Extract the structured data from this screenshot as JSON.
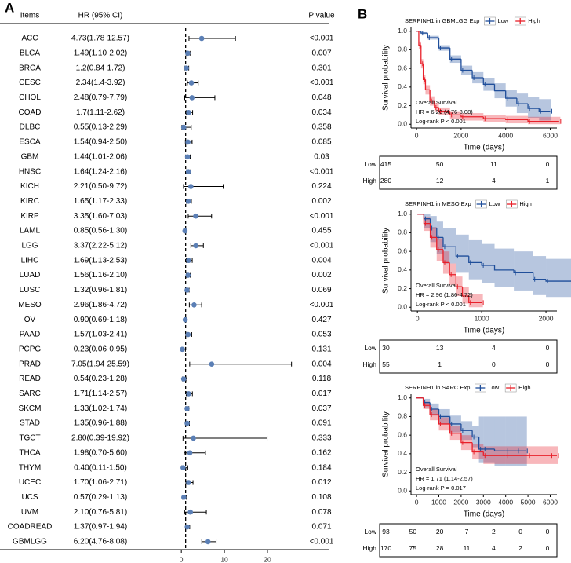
{
  "chart_data": [
    {
      "type": "forest",
      "panel": "A",
      "columns": [
        "Items",
        "HR (95% CI)",
        "P value"
      ],
      "categories": [
        "ACC",
        "BLCA",
        "BRCA",
        "CESC",
        "CHOL",
        "COAD",
        "DLBC",
        "ESCA",
        "GBM",
        "HNSC",
        "KICH",
        "KIRC",
        "KIRP",
        "LAML",
        "LGG",
        "LIHC",
        "LUAD",
        "LUSC",
        "MESO",
        "OV",
        "PAAD",
        "PCPG",
        "PRAD",
        "READ",
        "SARC",
        "SKCM",
        "STAD",
        "TGCT",
        "THCA",
        "THYM",
        "UCEC",
        "UCS",
        "UVM",
        "COADREAD",
        "GBMLGG"
      ],
      "hr_labels": [
        "4.73(1.78-12.57)",
        "1.49(1.10-2.02)",
        "1.2(0.84-1.72)",
        "2.34(1.4-3.92)",
        "2.48(0.79-7.79)",
        "1.7(1.11-2.62)",
        "0.55(0.13-2.29)",
        "1.54(0.94-2.50)",
        "1.44(1.01-2.06)",
        "1.64(1.24-2.16)",
        "2.21(0.50-9.72)",
        "1.65(1.17-2.33)",
        "3.35(1.60-7.03)",
        "0.85(0.56-1.30)",
        "3.37(2.22-5.12)",
        "1.69(1.13-2.53)",
        "1.56(1.16-2.10)",
        "1.32(0.96-1.81)",
        "2.96(1.86-4.72)",
        "0.90(0.69-1.18)",
        "1.57(1.03-2.41)",
        "0.23(0.06-0.95)",
        "7.05(1.94-25.59)",
        "0.54(0.23-1.28)",
        "1.71(1.14-2.57)",
        "1.33(1.02-1.74)",
        "1.35(0.96-1.88)",
        "2.80(0.39-19.92)",
        "1.98(0.70-5.60)",
        "0.40(0.11-1.50)",
        "1.70(1.06-2.71)",
        "0.57(0.29-1.13)",
        "2.10(0.76-5.81)",
        "1.37(0.97-1.94)",
        "6.20(4.76-8.08)"
      ],
      "hr": [
        4.73,
        1.49,
        1.2,
        2.34,
        2.48,
        1.7,
        0.55,
        1.54,
        1.44,
        1.64,
        2.21,
        1.65,
        3.35,
        0.85,
        3.37,
        1.69,
        1.56,
        1.32,
        2.96,
        0.9,
        1.57,
        0.23,
        7.05,
        0.54,
        1.71,
        1.33,
        1.35,
        2.8,
        1.98,
        0.4,
        1.7,
        0.57,
        2.1,
        1.37,
        6.2
      ],
      "lower": [
        1.78,
        1.1,
        0.84,
        1.4,
        0.79,
        1.11,
        0.13,
        0.94,
        1.01,
        1.24,
        0.5,
        1.17,
        1.6,
        0.56,
        2.22,
        1.13,
        1.16,
        0.96,
        1.86,
        0.69,
        1.03,
        0.06,
        1.94,
        0.23,
        1.14,
        1.02,
        0.96,
        0.39,
        0.7,
        0.11,
        1.06,
        0.29,
        0.76,
        0.97,
        4.76
      ],
      "upper": [
        12.57,
        2.02,
        1.72,
        3.92,
        7.79,
        2.62,
        2.29,
        2.5,
        2.06,
        2.16,
        9.72,
        2.33,
        7.03,
        1.3,
        5.12,
        2.53,
        2.1,
        1.81,
        4.72,
        1.18,
        2.41,
        0.95,
        25.59,
        1.28,
        2.57,
        1.74,
        1.88,
        19.92,
        5.6,
        1.5,
        2.71,
        1.13,
        5.81,
        1.94,
        8.08
      ],
      "p_values": [
        "<0.001",
        0.007,
        0.301,
        "<0.001",
        0.048,
        0.034,
        0.358,
        0.085,
        0.03,
        "<0.001",
        0.224,
        0.002,
        "<0.001",
        0.455,
        "<0.001",
        0.004,
        0.002,
        0.069,
        "<0.001",
        0.427,
        0.053,
        0.131,
        0.004,
        0.118,
        0.017,
        0.037,
        0.091,
        0.333,
        0.162,
        0.184,
        0.012,
        0.108,
        0.078,
        0.071,
        "<0.001"
      ],
      "reference": 1,
      "color": "#5b7fb5",
      "xlim": [
        -2.4,
        26.2
      ],
      "xticks": [
        0,
        10,
        20
      ]
    },
    {
      "type": "km",
      "panel": "B",
      "title": "SERPINH1 in GBMLGG Exp",
      "xlabel": "Time (days)",
      "ylabel": "Survival probability",
      "annotations": [
        "Overall Survival",
        "HR = 6.20 (4.76-8.08)",
        "Log-rank P < 0.001"
      ],
      "xlim": [
        -250,
        6300
      ],
      "xticks": [
        0,
        2000,
        4000,
        6000
      ],
      "ylim": [
        -0.04,
        1.04
      ],
      "yticks": [
        {
          "value": 0,
          "label": "0.0"
        },
        0.2,
        0.4,
        0.6,
        0.8,
        {
          "value": 1,
          "label": "1.0"
        }
      ],
      "series": [
        {
          "name": "Low",
          "color": "#1f4e9a",
          "x": [
            0,
            200,
            500,
            1000,
            1500,
            2000,
            2500,
            3000,
            3500,
            4000,
            4500,
            5000,
            5500,
            6000
          ],
          "values": [
            1,
            0.98,
            0.93,
            0.82,
            0.7,
            0.58,
            0.5,
            0.43,
            0.36,
            0.28,
            0.22,
            0.17,
            0.14,
            0.14
          ],
          "lower": [
            1,
            0.97,
            0.91,
            0.79,
            0.66,
            0.53,
            0.44,
            0.36,
            0.28,
            0.19,
            0.12,
            0.07,
            0.04,
            0.04
          ],
          "upper": [
            1,
            0.99,
            0.95,
            0.85,
            0.74,
            0.63,
            0.56,
            0.5,
            0.44,
            0.37,
            0.33,
            0.29,
            0.27,
            0.27
          ]
        },
        {
          "name": "High",
          "color": "#e8202a",
          "x": [
            0,
            100,
            200,
            300,
            400,
            600,
            800,
            1000,
            1500,
            2000,
            3000,
            4000,
            5000,
            6400
          ],
          "values": [
            1,
            0.85,
            0.65,
            0.48,
            0.37,
            0.25,
            0.18,
            0.14,
            0.1,
            0.08,
            0.06,
            0.05,
            0.03,
            0.03
          ],
          "lower": [
            1,
            0.81,
            0.6,
            0.43,
            0.32,
            0.2,
            0.14,
            0.1,
            0.06,
            0.04,
            0.02,
            0.01,
            0,
            0
          ],
          "upper": [
            1,
            0.89,
            0.7,
            0.53,
            0.42,
            0.3,
            0.23,
            0.18,
            0.14,
            0.12,
            0.1,
            0.09,
            0.08,
            0.08
          ]
        }
      ],
      "risk_table": {
        "rows": [
          {
            "name": "Low",
            "values": [
              415,
              50,
              11,
              0
            ]
          },
          {
            "name": "High",
            "values": [
              280,
              12,
              4,
              1
            ]
          }
        ]
      }
    },
    {
      "type": "km",
      "title": "SERPINH1 in MESO Exp",
      "xlabel": "Time (days)",
      "ylabel": "Survival probability",
      "annotations": [
        "Overall Survival",
        "HR = 2.96 (1.86-4.72)",
        "Log-rank P < 0.001"
      ],
      "xlim": [
        -100,
        2170
      ],
      "xticks": [
        0,
        1000,
        2000
      ],
      "ylim": [
        -0.04,
        1.04
      ],
      "yticks": [
        {
          "value": 0,
          "label": "0.0"
        },
        0.2,
        0.4,
        0.6,
        0.8,
        {
          "value": 1,
          "label": "1.0"
        }
      ],
      "series": [
        {
          "name": "Low",
          "color": "#1f4e9a",
          "x": [
            0,
            100,
            200,
            300,
            400,
            600,
            800,
            1000,
            1200,
            1500,
            1800,
            2000,
            2400,
            2600,
            2700
          ],
          "values": [
            1,
            0.95,
            0.85,
            0.75,
            0.65,
            0.55,
            0.48,
            0.45,
            0.4,
            0.37,
            0.3,
            0.28,
            0.28,
            0.14,
            0
          ],
          "lower": [
            1,
            0.85,
            0.7,
            0.57,
            0.47,
            0.37,
            0.3,
            0.26,
            0.22,
            0.18,
            0.13,
            0.11,
            0.11,
            0.02,
            0
          ],
          "upper": [
            1,
            1,
            0.98,
            0.92,
            0.85,
            0.78,
            0.72,
            0.68,
            0.63,
            0.6,
            0.55,
            0.52,
            0.52,
            0.45,
            0.45
          ]
        },
        {
          "name": "High",
          "color": "#e8202a",
          "x": [
            0,
            100,
            200,
            300,
            400,
            500,
            600,
            700,
            800,
            1000
          ],
          "values": [
            1,
            0.9,
            0.75,
            0.62,
            0.48,
            0.35,
            0.22,
            0.12,
            0.05,
            0.05
          ],
          "lower": [
            1,
            0.82,
            0.64,
            0.5,
            0.36,
            0.24,
            0.12,
            0.04,
            0,
            0
          ],
          "upper": [
            1,
            0.97,
            0.86,
            0.74,
            0.6,
            0.47,
            0.33,
            0.22,
            0.14,
            0.14
          ]
        }
      ],
      "risk_table": {
        "rows": [
          {
            "name": "Low",
            "values": [
              30,
              13,
              4,
              0
            ]
          },
          {
            "name": "High",
            "values": [
              55,
              1,
              0,
              0
            ]
          }
        ]
      }
    },
    {
      "type": "km",
      "title": "SERPINH1 in SARC Exp",
      "xlabel": "Time (days)",
      "ylabel": "Survival probability",
      "annotations": [
        "Overall Survival",
        "HR = 1.71 (1.14-2.57)",
        "Log-rank P = 0.017"
      ],
      "xlim": [
        -250,
        6300
      ],
      "xticks": [
        0,
        1000,
        2000,
        3000,
        4000,
        5000,
        6000
      ],
      "ylim": [
        -0.04,
        1.04
      ],
      "yticks": [
        {
          "value": 0,
          "label": "0.0"
        },
        0.2,
        0.4,
        0.6,
        0.8,
        {
          "value": 1,
          "label": "1.0"
        }
      ],
      "series": [
        {
          "name": "Low",
          "color": "#1f4e9a",
          "x": [
            0,
            300,
            600,
            1000,
            1500,
            2000,
            2500,
            2800,
            3000,
            3500,
            4000,
            4500,
            4900
          ],
          "values": [
            1,
            0.95,
            0.88,
            0.8,
            0.72,
            0.65,
            0.58,
            0.45,
            0.45,
            0.43,
            0.43,
            0.43,
            0.43
          ],
          "lower": [
            1,
            0.9,
            0.81,
            0.72,
            0.63,
            0.55,
            0.47,
            0.3,
            0.3,
            0.27,
            0.27,
            0.27,
            0.27
          ],
          "upper": [
            1,
            0.99,
            0.94,
            0.88,
            0.81,
            0.75,
            0.7,
            0.8,
            0.8,
            0.8,
            0.8,
            0.8,
            0.8
          ]
        },
        {
          "name": "High",
          "color": "#e8202a",
          "x": [
            0,
            300,
            600,
            1000,
            1500,
            2000,
            2500,
            3000,
            4000,
            5000,
            6000,
            6300
          ],
          "values": [
            1,
            0.92,
            0.82,
            0.72,
            0.62,
            0.52,
            0.42,
            0.38,
            0.38,
            0.38,
            0.38,
            0.38
          ],
          "lower": [
            1,
            0.88,
            0.76,
            0.65,
            0.55,
            0.44,
            0.34,
            0.29,
            0.29,
            0.29,
            0.29,
            0.29
          ],
          "upper": [
            1,
            0.96,
            0.88,
            0.79,
            0.7,
            0.6,
            0.5,
            0.48,
            0.48,
            0.48,
            0.48,
            0.48
          ]
        }
      ],
      "risk_table": {
        "rows": [
          {
            "name": "Low",
            "values": [
              93,
              50,
              20,
              7,
              2,
              0,
              0
            ]
          },
          {
            "name": "High",
            "values": [
              170,
              75,
              28,
              11,
              4,
              2,
              0
            ]
          }
        ]
      }
    }
  ]
}
